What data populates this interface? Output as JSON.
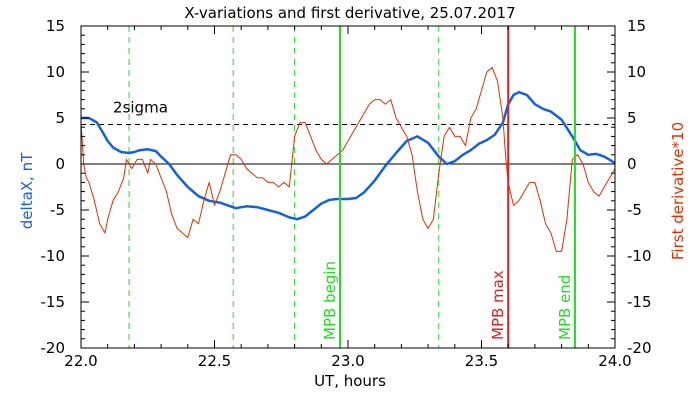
{
  "colors": {
    "deltax": "#1560e0",
    "derivative": "#e03000",
    "mpb": "#22dd22",
    "mpb_max": "#e02020",
    "frame": "#000000",
    "sigma": "#000000"
  },
  "chart_data": {
    "type": "line",
    "title": "X-variations and first derivative, 25.07.2017",
    "xlabel": "UT, hours",
    "ylabel": "deltaX, nT",
    "y2label": "First derivative*10",
    "xlim": [
      22.0,
      24.0
    ],
    "ylim": [
      -20,
      15
    ],
    "y2lim": [
      -20,
      15
    ],
    "x_ticks": [
      "22.0",
      "22.5",
      "23.0",
      "23.5",
      "24.0"
    ],
    "y_ticks": [
      "15",
      "10",
      "5",
      "0",
      "-5",
      "-10",
      "-15",
      "-20"
    ],
    "y2_ticks": [
      "15",
      "10",
      "5",
      "0",
      "-5",
      "-10",
      "-15",
      "-20"
    ],
    "sigma": {
      "label": "2sigma",
      "value": 4.3
    },
    "zero_line": 0,
    "dashed_vlines": [
      22.18,
      22.57,
      22.8,
      23.34
    ],
    "markers": [
      {
        "label": "MPB begin",
        "x": 22.97,
        "color_key": "mpb"
      },
      {
        "label": "MPB max",
        "x": 23.6,
        "color_key": "mpb_max"
      },
      {
        "label": "MPB end",
        "x": 23.85,
        "color_key": "mpb"
      }
    ],
    "series": [
      {
        "axis": "left",
        "color_key": "deltax",
        "x": [
          22.0,
          22.03,
          22.06,
          22.08,
          22.1,
          22.12,
          22.15,
          22.18,
          22.2,
          22.22,
          22.25,
          22.28,
          22.3,
          22.33,
          22.36,
          22.4,
          22.44,
          22.48,
          22.52,
          22.55,
          22.58,
          22.62,
          22.66,
          22.7,
          22.74,
          22.78,
          22.81,
          22.84,
          22.87,
          22.9,
          22.93,
          22.96,
          23.0,
          23.03,
          23.06,
          23.1,
          23.14,
          23.18,
          23.22,
          23.26,
          23.3,
          23.34,
          23.37,
          23.4,
          23.43,
          23.46,
          23.49,
          23.52,
          23.55,
          23.58,
          23.6,
          23.62,
          23.64,
          23.67,
          23.7,
          23.73,
          23.76,
          23.8,
          23.84,
          23.87,
          23.9,
          23.93,
          23.96,
          24.0
        ],
        "y": [
          5.0,
          5.0,
          4.5,
          3.5,
          2.5,
          1.8,
          1.3,
          1.2,
          1.3,
          1.5,
          1.6,
          1.4,
          0.8,
          0,
          -1.2,
          -2.5,
          -3.5,
          -4.0,
          -4.2,
          -4.5,
          -4.8,
          -4.6,
          -4.7,
          -5.0,
          -5.3,
          -5.8,
          -6.0,
          -5.7,
          -5.0,
          -4.3,
          -3.9,
          -3.8,
          -3.8,
          -3.7,
          -3.1,
          -1.8,
          -0.2,
          1.2,
          2.5,
          3.0,
          2.3,
          0.8,
          0.0,
          0.3,
          1.0,
          1.5,
          2.2,
          2.6,
          3.2,
          4.5,
          6.5,
          7.5,
          7.8,
          7.5,
          6.5,
          6.0,
          5.7,
          4.8,
          3.0,
          1.5,
          1.0,
          1.1,
          0.8,
          0.1
        ]
      },
      {
        "axis": "right",
        "color_key": "derivative",
        "x": [
          22.0,
          22.01,
          22.02,
          22.03,
          22.05,
          22.07,
          22.09,
          22.1,
          22.12,
          22.14,
          22.16,
          22.17,
          22.19,
          22.21,
          22.23,
          22.25,
          22.26,
          22.28,
          22.3,
          22.32,
          22.34,
          22.36,
          22.38,
          22.4,
          22.42,
          22.44,
          22.46,
          22.48,
          22.5,
          22.52,
          22.54,
          22.56,
          22.58,
          22.6,
          22.62,
          22.64,
          22.66,
          22.68,
          22.7,
          22.72,
          22.74,
          22.76,
          22.78,
          22.8,
          22.82,
          22.84,
          22.86,
          22.88,
          22.9,
          22.92,
          22.94,
          22.96,
          22.98,
          23.0,
          23.02,
          23.04,
          23.06,
          23.08,
          23.1,
          23.12,
          23.14,
          23.16,
          23.18,
          23.2,
          23.22,
          23.24,
          23.26,
          23.28,
          23.3,
          23.32,
          23.34,
          23.36,
          23.38,
          23.4,
          23.42,
          23.44,
          23.46,
          23.48,
          23.5,
          23.52,
          23.54,
          23.56,
          23.58,
          23.59,
          23.6,
          23.62,
          23.64,
          23.66,
          23.68,
          23.7,
          23.72,
          23.74,
          23.76,
          23.78,
          23.8,
          23.82,
          23.84,
          23.86,
          23.88,
          23.9,
          23.92,
          23.94,
          23.96,
          23.98,
          24.0
        ],
        "y": [
          4.5,
          0,
          -1.5,
          -2.0,
          -4.0,
          -6.5,
          -7.5,
          -6.0,
          -4.0,
          -3.0,
          -1.5,
          0.5,
          -0.5,
          0.5,
          0.5,
          -1.0,
          0.5,
          0.0,
          -1.5,
          -3.0,
          -5.5,
          -7.0,
          -7.5,
          -8.0,
          -6.0,
          -6.5,
          -4.0,
          -2.0,
          -4.5,
          -3.0,
          -1.0,
          1.0,
          1.0,
          0.5,
          -0.5,
          -1.0,
          -1.5,
          -1.5,
          -2.0,
          -2.0,
          -2.5,
          -2.0,
          -2.5,
          3.0,
          4.5,
          4.5,
          3.0,
          1.5,
          0.5,
          0.0,
          0.5,
          1.0,
          1.5,
          2.5,
          3.5,
          4.5,
          5.5,
          6.5,
          7.0,
          7.0,
          6.5,
          7.0,
          5.0,
          4.0,
          3.0,
          1.0,
          -3.0,
          -6.0,
          -7.0,
          -6.0,
          -1.0,
          3.0,
          4.0,
          3.0,
          3.0,
          2.0,
          5.0,
          6.0,
          8.0,
          10.0,
          10.5,
          9.0,
          5.0,
          1.0,
          -2.0,
          -4.5,
          -4.0,
          -3.0,
          -2.0,
          -2.0,
          -4.0,
          -6.5,
          -7.5,
          -9.5,
          -9.5,
          -6.0,
          0.5,
          1.0,
          0.0,
          -2.0,
          -3.0,
          -3.5,
          -2.5,
          -1.5,
          -0.5
        ]
      }
    ]
  }
}
